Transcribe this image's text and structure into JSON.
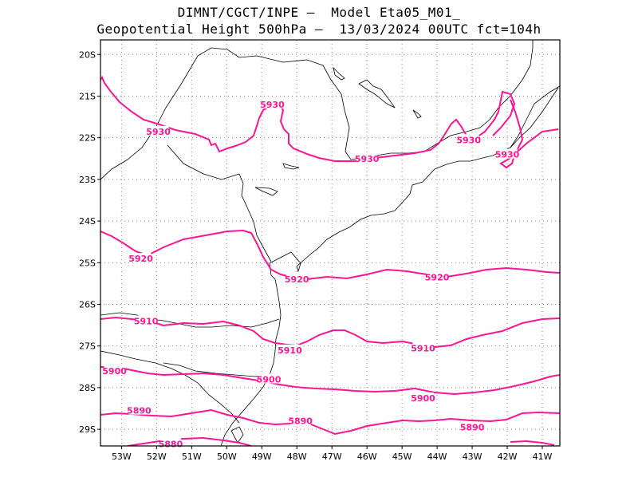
{
  "title": {
    "line1": "DIMNT/CGCT/INPE –  Model Eta05_M01_",
    "line2": "Geopotential Height 500hPa –  13/03/2024 00UTC fct=104h"
  },
  "colors": {
    "contour": "#ff1493",
    "coast": "#000000",
    "grid": "#888888"
  },
  "axes": {
    "lat_labels": [
      "20S",
      "21S",
      "22S",
      "23S",
      "24S",
      "25S",
      "26S",
      "27S",
      "28S",
      "29S"
    ],
    "lon_labels": [
      "53W",
      "52W",
      "51W",
      "50W",
      "49W",
      "48W",
      "47W",
      "46W",
      "45W",
      "44W",
      "43W",
      "42W",
      "41W"
    ]
  },
  "contour_labels": [
    {
      "text": "5930",
      "lon": -51.95,
      "lat": -21.85
    },
    {
      "text": "5930",
      "lon": -48.7,
      "lat": -21.2
    },
    {
      "text": "5930",
      "lon": -46.0,
      "lat": -22.5
    },
    {
      "text": "5930",
      "lon": -43.1,
      "lat": -22.05
    },
    {
      "text": "5930",
      "lon": -42.0,
      "lat": -22.4
    },
    {
      "text": "5920",
      "lon": -52.45,
      "lat": -24.9
    },
    {
      "text": "5920",
      "lon": -48.0,
      "lat": -25.4
    },
    {
      "text": "5920",
      "lon": -44.0,
      "lat": -25.35
    },
    {
      "text": "5910",
      "lon": -52.3,
      "lat": -26.4
    },
    {
      "text": "5910",
      "lon": -48.2,
      "lat": -27.1
    },
    {
      "text": "5910",
      "lon": -44.4,
      "lat": -27.05
    },
    {
      "text": "5900",
      "lon": -53.2,
      "lat": -27.6
    },
    {
      "text": "5900",
      "lon": -48.8,
      "lat": -27.8
    },
    {
      "text": "5900",
      "lon": -44.4,
      "lat": -28.25
    },
    {
      "text": "5890",
      "lon": -52.5,
      "lat": -28.55
    },
    {
      "text": "5890",
      "lon": -47.9,
      "lat": -28.8
    },
    {
      "text": "5890",
      "lon": -43.0,
      "lat": -28.95
    },
    {
      "text": "5880",
      "lon": -51.6,
      "lat": -29.35
    }
  ]
}
